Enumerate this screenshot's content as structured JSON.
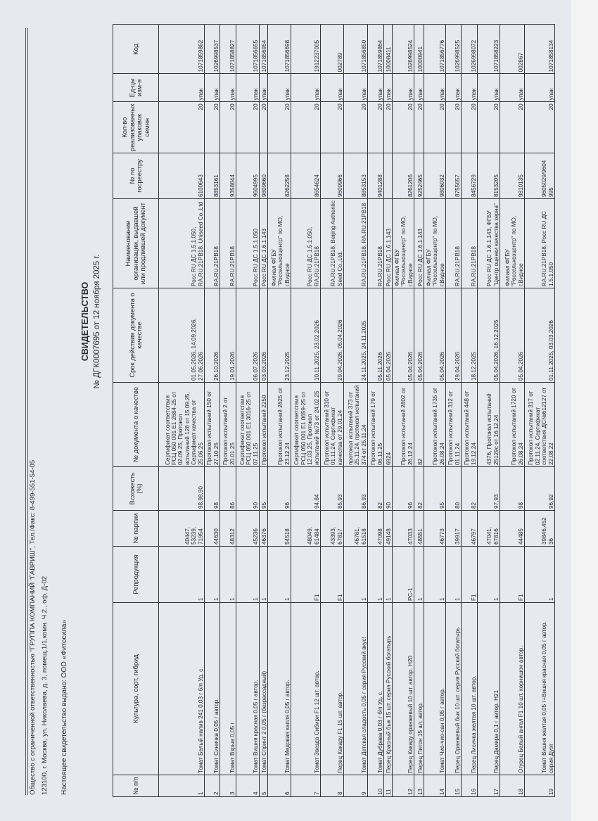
{
  "header": {
    "company": "Общество с ограниченной ответственностью \"ГРУППА КОМПАНИЙ \"ГАВРИШ\", Тел./Факс: 8-499-551-54-05",
    "address": "123100, г. Москва, ул. Николаева, д. 3, помещ.1/1,комн. Ч.2., оф. Д-02",
    "issued_to": "Настоящее свидетельство выдано: ООО «Фитосила»"
  },
  "document": {
    "title": "СВИДЕТЕЛЬСТВО",
    "number": "№ ДГК0007695 от 12 ноября 2025 г."
  },
  "table": {
    "columns": [
      "№ п/п",
      "Культура, сорт, гибрид",
      "Репродукция",
      "№ партии",
      "Всхожесть (%)",
      "№ документа о качестве",
      "Срок действия документа о качестве",
      "Наименование организации, выдавшей или продлившей документ",
      "№ по госреестру",
      "Кол-во реализованных упаковок семян",
      "Ед-цы изм-я",
      "Код"
    ],
    "rows": [
      [
        "1",
        "Томат Белый налив 241 0,03 г б/п Уд. с.",
        "1",
        "40447, 53239, 71954",
        "98,98,90",
        "Сертификат соответствия РСЦ 050 001 E1 2684-25 от 02.09.25, Протокол испытаний 128 от 15.09.25, Сертификат качества от 25.06.25",
        "01.05.2026, 14.09.2026, 27.06.2026",
        "Росс RU ДС 1.5.1.050, RA.RU.21PB18, Uniseed Co.,Ltd",
        "6100643",
        "20",
        "упак",
        "1071859862"
      ],
      [
        "2",
        "Томат Синичка 0,05 г автор.",
        "1",
        "44630",
        "98",
        "Протокол испытаний 150 от 27.10.25",
        "26.10.2026",
        "RA.RU.21PB18",
        "8853161",
        "20",
        "упак",
        "1026998537"
      ],
      [
        "3",
        "Томат Взрыв 0,05 г",
        "1",
        "48312",
        "86",
        "Протокол испытаний 2 от 20.01.25",
        "19.01.2026",
        "RA.RU.21PB18",
        "9358844",
        "20",
        "упак",
        "1071858827"
      ],
      [
        "4",
        "Томат Вишня красная 0,05 г автор.",
        "1",
        "45236",
        "90",
        "Сертификат соответствия РСЦ 050 001 E1 3016-25 от 07.11.25",
        "06.07.2026",
        "Росс RU ДС 1.5.1.050",
        "9604995",
        "20",
        "упак",
        "1071856655"
      ],
      [
        "5",
        "Томат Спринт 2  0,05 г (безрассадный)",
        "1",
        "46376",
        "95",
        "Протокол испытаний 2250",
        "03.03.2026",
        "Росс RU ДС 1.6.1.143",
        "9809660",
        "20",
        "упак",
        "1071856954"
      ],
      [
        "6",
        "Томат Медовая капля 0,05 г автор.",
        "1",
        "54518",
        "96",
        "Протокол испытаний 2825 от 23.12.24",
        "23.12.2025",
        "Филиал ФГБУ \"Россельхозцентр\" по МО, г.Видное",
        "8262258",
        "20",
        "упак",
        "1071856698"
      ],
      [
        "7",
        "Томат Звезда Сибири F1 12 шт. автор.",
        "F1",
        "48049, 61484",
        "94,84",
        "Сертификат соответствия РСЦ 050 001 E1 0659-25 от 12.03.25, Протокол испытаний №73 от 24.02.25",
        "10.11.2025, 23.02.2026",
        "Росс RU ДС 1.5.1.050, RA.RU.21PB18",
        "8654624",
        "20",
        "упак",
        "1912237005"
      ],
      [
        "8",
        "Перец Какаду F1 15 шт. автор.",
        "F1",
        "43393, 67817",
        "85,93",
        "Протокол испытаний 310 от 01.11.24, Сертификат качества от 29.01.24",
        "29.04.2026, 05.04.2026",
        "RA.RU.21PB18, Beijing Authentic Seed Co.,Ltd.",
        "9609966",
        "20",
        "упак",
        "002789"
      ],
      [
        "9",
        "Томат Детская сладость 0,05 г серия Русский вкус!",
        "1",
        "46781, 61518",
        "86,93",
        "протокол испытаний 373 от 25.11.24, протокол испытаний 374 от 25.11.24",
        "24.11.2025, 24.11.2025",
        "RA.RU.21PB18, RA.RU.21PB18",
        "8853153",
        "20",
        "упак",
        "1071856850"
      ],
      [
        "10",
        "Томат Дубрава 0,03 г б/п Уд. с.",
        "1",
        "47098",
        "82",
        "Протокол испытаний 179 от 06.11.25",
        "05.11.2026",
        "RA.RU.21PB18",
        "9401288",
        "20",
        "упак",
        "1071859864"
      ],
      [
        "11",
        "Перец Красный бык 15 шт. серия Русский богатырь",
        "1",
        "49148",
        "90",
        "6924",
        "05.04.2026",
        "Росс RU ДС 1.6.1.143",
        "",
        "20",
        "упак",
        "10008411"
      ],
      [
        "12",
        "Перец Какаду оранжевый 10 шт. автор. H20",
        "PC-1",
        "47033",
        "96",
        "Протокол испытаний 2802 от 26.12.24",
        "05.04.2026",
        "Филиал ФГБУ \"Россельхозцентр\" по МО, г.Видное",
        "8261206",
        "20",
        "упак",
        "1026998524"
      ],
      [
        "13",
        "Перец Питон 15 шт. автор.",
        "1",
        "48551",
        "82",
        "82",
        "05.04.2026",
        "Росс RU ДС 1.6.1.143",
        "9252465",
        "20",
        "упак",
        "10000941"
      ],
      [
        "14",
        "Томат Чио-чио-сан 0,05 г автор.",
        "1",
        "46773",
        "95",
        "Протокол испытаний 1735 от 26.08.24",
        "05.04.2026",
        "Филиал ФГБУ \"Россельхозцентр\" по МО, г.Видное",
        "9806032",
        "20",
        "упак",
        "1071856776"
      ],
      [
        "15",
        "Перец Оранжевый бык 10 шт. серия Русский богатырь",
        "1",
        "39917",
        "80",
        "Протокол испытаний 312 от 01.11.24",
        "29.04.2026",
        "RA.RU.21PB18",
        "8755657",
        "20",
        "упак",
        "1026998525"
      ],
      [
        "16",
        "Перец Лисичка желтая  10 шт. автор.",
        "F1",
        "46797",
        "82",
        "Протокол испытаний 448 от 19.12.24",
        "18.12.2025",
        "RA.RU.21PB18",
        "8456729",
        "20",
        "упак",
        "1026998072"
      ],
      [
        "17",
        "Перец Дамира 0,1 г автор. H21",
        "1",
        "47041, 67816",
        "97,93",
        "4376, Протокол испытаний 25129с от 16.12.24",
        "05.04.2026, 16.12.2025",
        "Росс RU ДС 1.6.1.143, ФГБУ \"Центр оценки качества зерна\"",
        "8153205",
        "20",
        "упак",
        "1071858223"
      ],
      [
        "18",
        "Огурец Белый ангел F1 10 шт. корнишон автор.",
        "F1",
        "44485",
        "98",
        "Протокол испытаний 1720 от 26.08.24",
        "05.04.2026",
        "Филиал ФГБУ \"Россельхозцентр\" по МО, г.Видное",
        "9810135",
        "20",
        "упак",
        "002867"
      ],
      [
        "19",
        "Томат Вишня желтая 0,05 г+Вишня красная 0,05 г автор. серия Дуэт",
        "1",
        "39846,452 36",
        "96,92",
        "Протокол испытаний 317 от 02.11.24, Сертификат соответствия ДС№612127 от 22.08.22",
        "01.11.2025, 03.03.2026",
        "RA.RU.21PB18, Росс RU ДС 1.5.1.050",
        "9605029/9604 995",
        "20",
        "упак",
        "1071858134"
      ]
    ]
  }
}
